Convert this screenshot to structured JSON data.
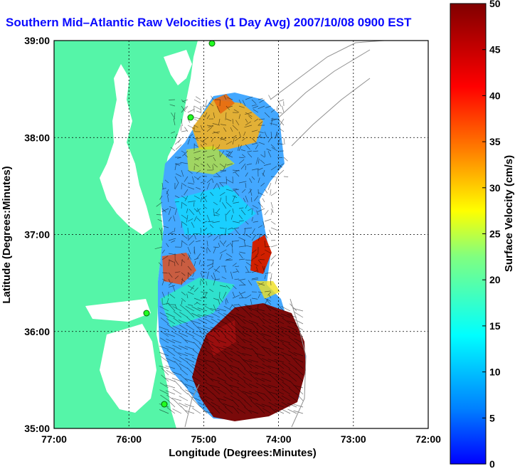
{
  "title": "Southern Mid–Atlantic Raw Velocities (1 Day Avg) 2007/10/08 0900 EST",
  "map": {
    "xlabel": "Longitude (Degrees:Minutes)",
    "ylabel": "Latitude (Degrees:Minutes)",
    "x_ticks": [
      "77:00",
      "76:00",
      "75:00",
      "74:00",
      "73:00",
      "72:00"
    ],
    "y_ticks": [
      "39:00",
      "38:00",
      "37:00",
      "36:00",
      "35:00"
    ],
    "lon_range": [
      -77,
      -72
    ],
    "lat_range": [
      35,
      39
    ],
    "grid": true,
    "land_color": "#55f5a8",
    "ocean_color": "#ffffff"
  },
  "colorbar": {
    "label": "Surface Velocity (cm/s)",
    "ticks": [
      "50",
      "45",
      "40",
      "35",
      "30",
      "25",
      "20",
      "15",
      "10",
      "5",
      "0"
    ],
    "range": [
      0,
      50
    ],
    "colormap": "jet"
  }
}
